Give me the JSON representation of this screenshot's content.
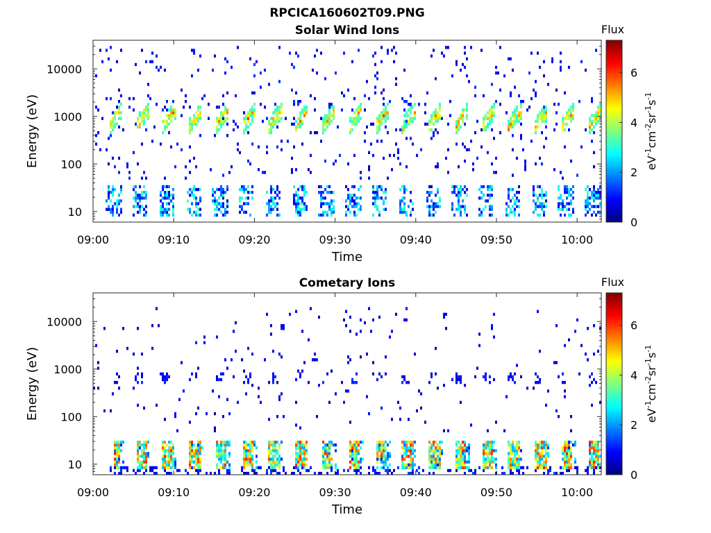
{
  "figure_title": "RPCICA160602T09.PNG",
  "chart_data": [
    {
      "type": "heatmap",
      "title": "Solar Wind Ions",
      "xlabel": "Time",
      "ylabel": "Energy (eV)",
      "x_ticks": [
        "09:00",
        "09:10",
        "09:20",
        "09:30",
        "09:40",
        "09:50",
        "10:00"
      ],
      "y_ticks": [
        "10",
        "100",
        "1000",
        "10000"
      ],
      "y_scale": "log",
      "ylim": [
        6,
        40000
      ],
      "xlim": [
        "09:00",
        "10:03"
      ],
      "colorbar": {
        "title": "Flux",
        "label": "eV-1cm-2sr-1s-1",
        "ticks": [
          "0",
          "2",
          "4",
          "6"
        ],
        "range": [
          0,
          7.3
        ],
        "colormap": "jet"
      },
      "features": [
        {
          "name": "solar wind beam",
          "energy_range_eV": [
            400,
            2500
          ],
          "peak_flux": 5,
          "period_min": 3.3,
          "note": "periodic bursts ~600-1500 eV"
        },
        {
          "name": "low energy ions",
          "energy_range_eV": [
            8,
            35
          ],
          "peak_flux": 3
        },
        {
          "name": "background counts",
          "energy_range_eV": [
            50,
            30000
          ],
          "peak_flux": 1
        }
      ]
    },
    {
      "type": "heatmap",
      "title": "Cometary Ions",
      "xlabel": "Time",
      "ylabel": "Energy (eV)",
      "x_ticks": [
        "09:00",
        "09:10",
        "09:20",
        "09:30",
        "09:40",
        "09:50",
        "10:00"
      ],
      "y_ticks": [
        "10",
        "100",
        "1000",
        "10000"
      ],
      "y_scale": "log",
      "ylim": [
        6,
        40000
      ],
      "xlim": [
        "09:00",
        "10:03"
      ],
      "colorbar": {
        "title": "Flux",
        "label": "eV-1cm-2sr-1s-1",
        "ticks": [
          "0",
          "2",
          "4",
          "6"
        ],
        "range": [
          0,
          7.3
        ],
        "colormap": "jet"
      },
      "features": [
        {
          "name": "cometary ions",
          "energy_range_eV": [
            8,
            30
          ],
          "peak_flux": 6,
          "period_min": 3.3
        },
        {
          "name": "solar wind contamination",
          "energy_range_eV": [
            500,
            900
          ],
          "peak_flux": 1
        },
        {
          "name": "background counts",
          "energy_range_eV": [
            50,
            30000
          ],
          "peak_flux": 1
        }
      ]
    }
  ]
}
